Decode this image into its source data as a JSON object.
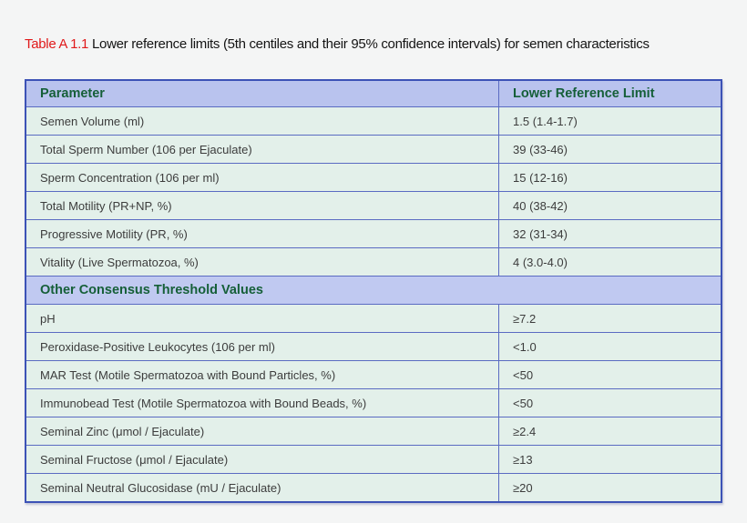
{
  "caption": {
    "label": "Table A 1.1",
    "text": "Lower reference limits (5th centiles and their 95% confidence intervals) for semen characteristics"
  },
  "table": {
    "headers": {
      "parameter": "Parameter",
      "value": "Lower Reference Limit"
    },
    "rows": [
      {
        "parameter": "Semen Volume (ml)",
        "value": "1.5 (1.4-1.7)"
      },
      {
        "parameter": "Total Sperm Number (106 per Ejaculate)",
        "value": "39 (33-46)"
      },
      {
        "parameter": "Sperm Concentration (106 per ml)",
        "value": "15 (12-16)"
      },
      {
        "parameter": "Total Motility (PR+NP, %)",
        "value": "40 (38-42)"
      },
      {
        "parameter": "Progressive Motility (PR, %)",
        "value": "32 (31-34)"
      },
      {
        "parameter": "Vitality (Live Spermatozoa, %)",
        "value": "4 (3.0-4.0)"
      },
      {
        "parameter": "pH",
        "value": "≥7.2"
      },
      {
        "parameter": "Peroxidase-Positive Leukocytes (106 per ml)",
        "value": "<1.0"
      },
      {
        "parameter": "MAR Test (Motile Spermatozoa with Bound Particles, %)",
        "value": "<50"
      },
      {
        "parameter": "Immunobead Test (Motile Spermatozoa with Bound Beads, %)",
        "value": "<50"
      },
      {
        "parameter": "Seminal Zinc (μmol / Ejaculate)",
        "value": "≥2.4"
      },
      {
        "parameter": "Seminal Fructose (μmol / Ejaculate)",
        "value": "≥13"
      },
      {
        "parameter": "Seminal Neutral Glucosidase (mU / Ejaculate)",
        "value": "≥20"
      }
    ],
    "section_header": "Other Consensus Threshold Values"
  },
  "colors": {
    "caption_label": "#e0191a",
    "header_bg": "#b9c3ee",
    "header_text": "#155f38",
    "row_bg": "#e3f0ea",
    "section_bg": "#c0c9f1",
    "border_outer": "#3c52b6",
    "border_inner": "#5a6bc2",
    "page_bg": "#f4f5f5"
  }
}
